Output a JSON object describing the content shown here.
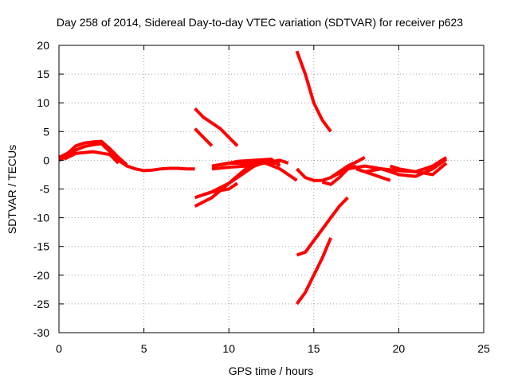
{
  "chart_data": {
    "type": "line",
    "title": "Day 258 of 2014, Sidereal Day-to-day VTEC variation (SDTVAR) for receiver p623",
    "xlabel": "GPS time / hours",
    "ylabel": "SDTVAR / TECUs",
    "xlim": [
      0,
      25
    ],
    "ylim": [
      -30,
      20
    ],
    "x_ticks": [
      0,
      5,
      10,
      15,
      20,
      25
    ],
    "y_ticks": [
      -30,
      -25,
      -20,
      -15,
      -10,
      -5,
      0,
      5,
      10,
      15,
      20
    ],
    "grid": true,
    "legend": "none",
    "color": "#ff0000",
    "series": [
      {
        "x": [
          0.0,
          0.5,
          1.0,
          1.5,
          2.0,
          2.5,
          3.0,
          3.5,
          4.0,
          4.5,
          5.0,
          5.5,
          6.0,
          6.5,
          7.0,
          7.5,
          8.0
        ],
        "y": [
          0.0,
          0.8,
          1.8,
          2.4,
          2.7,
          2.9,
          1.5,
          0.0,
          -1.0,
          -1.5,
          -1.8,
          -1.7,
          -1.5,
          -1.4,
          -1.4,
          -1.5,
          -1.5
        ]
      },
      {
        "x": [
          0.0,
          0.5,
          1.0,
          1.5,
          2.0,
          2.5,
          3.0,
          3.5,
          4.0
        ],
        "y": [
          0.5,
          1.2,
          2.5,
          3.0,
          3.2,
          3.3,
          2.0,
          0.5,
          -0.8
        ]
      },
      {
        "x": [
          0.3,
          1.0,
          2.0,
          3.0,
          3.5
        ],
        "y": [
          0.2,
          1.2,
          1.5,
          1.0,
          -0.5
        ]
      },
      {
        "x": [
          8.0,
          8.5,
          9.0,
          9.5,
          10.0,
          10.5
        ],
        "y": [
          9.0,
          7.5,
          6.5,
          5.5,
          4.0,
          2.5
        ]
      },
      {
        "x": [
          8.0,
          8.5,
          9.0
        ],
        "y": [
          5.5,
          4.0,
          2.5
        ]
      },
      {
        "x": [
          8.0,
          9.0,
          10.0,
          11.0,
          11.5
        ],
        "y": [
          -8.0,
          -6.5,
          -4.0,
          -2.0,
          -1.0
        ]
      },
      {
        "x": [
          8.0,
          9.0,
          10.0,
          11.0,
          12.0,
          13.0
        ],
        "y": [
          -6.5,
          -5.5,
          -4.0,
          -1.5,
          -0.5,
          -0.5
        ]
      },
      {
        "x": [
          8.5,
          9.0,
          10.0,
          10.5
        ],
        "y": [
          -6.0,
          -5.5,
          -5.0,
          -4.0
        ]
      },
      {
        "x": [
          9.0,
          10.0,
          11.0,
          12.0,
          13.0,
          14.0
        ],
        "y": [
          -1.0,
          -0.5,
          -0.5,
          -0.3,
          -1.5,
          -3.5
        ]
      },
      {
        "x": [
          9.0,
          10.0,
          11.0,
          12.0,
          13.0,
          13.5
        ],
        "y": [
          -1.5,
          -1.2,
          -1.0,
          -0.5,
          0.0,
          -0.5
        ]
      },
      {
        "x": [
          9.5,
          10.5,
          11.5,
          12.5,
          13.0
        ],
        "y": [
          -0.8,
          -0.2,
          0.0,
          0.2,
          -1.0
        ]
      },
      {
        "x": [
          14.0,
          14.5,
          15.0,
          15.5,
          16.0
        ],
        "y": [
          19.0,
          15.0,
          10.0,
          7.0,
          5.0
        ]
      },
      {
        "x": [
          14.0,
          14.5,
          15.0,
          15.5,
          16.0,
          16.5,
          17.0
        ],
        "y": [
          -16.5,
          -16.0,
          -14.0,
          -12.0,
          -10.0,
          -8.0,
          -6.5
        ]
      },
      {
        "x": [
          14.0,
          14.5,
          15.0,
          15.5,
          16.0
        ],
        "y": [
          -25.0,
          -23.0,
          -20.0,
          -17.0,
          -13.5
        ]
      },
      {
        "x": [
          14.0,
          14.5,
          15.0,
          15.5,
          16.0,
          16.5,
          17.0,
          17.5,
          18.0
        ],
        "y": [
          -1.5,
          -3.0,
          -3.5,
          -3.5,
          -3.0,
          -2.0,
          -1.0,
          -0.3,
          0.5
        ]
      },
      {
        "x": [
          15.5,
          16.0,
          16.5,
          17.0,
          17.5
        ],
        "y": [
          -3.8,
          -4.2,
          -3.0,
          -1.5,
          -1.0
        ]
      },
      {
        "x": [
          16.0,
          17.0,
          18.0,
          19.0,
          20.0,
          21.0,
          22.0,
          22.8
        ],
        "y": [
          -3.0,
          -1.5,
          -1.0,
          -1.5,
          -1.8,
          -2.0,
          -1.0,
          0.5
        ]
      },
      {
        "x": [
          17.5,
          18.0,
          18.5,
          19.0,
          19.5
        ],
        "y": [
          -1.5,
          -2.0,
          -2.5,
          -3.0,
          -3.5
        ]
      },
      {
        "x": [
          18.0,
          19.0,
          20.0,
          21.0,
          22.0,
          22.8
        ],
        "y": [
          -2.0,
          -1.5,
          -2.5,
          -2.8,
          -1.5,
          0.2
        ]
      },
      {
        "x": [
          19.5,
          20.0,
          21.0,
          22.0,
          22.8
        ],
        "y": [
          -1.0,
          -1.5,
          -2.0,
          -2.5,
          -0.5
        ]
      }
    ]
  }
}
